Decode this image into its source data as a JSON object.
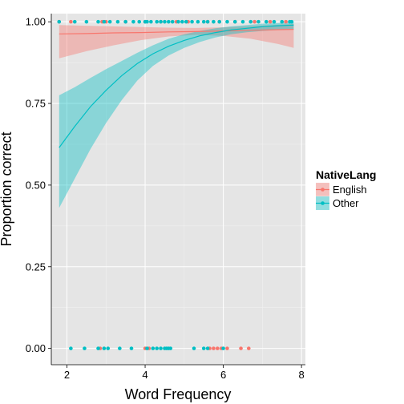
{
  "chart_data": {
    "type": "scatter",
    "title": "",
    "xlabel": "Word Frequency",
    "ylabel": "Proportion correct",
    "xlim": [
      1.6,
      8.1
    ],
    "ylim": [
      -0.05,
      1.025
    ],
    "x_ticks": [
      2,
      4,
      6,
      8
    ],
    "x_tick_labels": [
      "2",
      "4",
      "6",
      "8"
    ],
    "y_ticks": [
      0,
      0.25,
      0.5,
      0.75,
      1
    ],
    "y_tick_labels": [
      "0.00",
      "0.25",
      "0.50",
      "0.75",
      "1.00"
    ],
    "grid": true,
    "legend": {
      "title": "NativeLang",
      "position": "right"
    },
    "series": [
      {
        "name": "English",
        "color": "#F8766D",
        "points_y1": [
          1.8,
          2.1,
          2.9,
          3.0,
          3.5,
          4.0,
          4.4,
          4.8,
          5.1,
          5.6,
          5.9,
          6.3,
          6.8,
          7.2,
          7.6
        ],
        "points_y0": [
          2.85,
          4.0,
          4.1,
          5.65,
          5.75,
          5.85,
          5.95,
          6.1,
          6.45,
          6.65
        ],
        "fit_x": [
          1.8,
          2.5,
          3.2,
          3.9,
          4.6,
          5.3,
          6.0,
          6.7,
          7.4,
          7.8
        ],
        "fit_y": [
          0.963,
          0.964,
          0.966,
          0.967,
          0.969,
          0.97,
          0.972,
          0.974,
          0.976,
          0.977
        ],
        "ci_low": [
          0.888,
          0.91,
          0.928,
          0.944,
          0.955,
          0.96,
          0.957,
          0.948,
          0.932,
          0.92
        ],
        "ci_high": [
          0.99,
          0.988,
          0.986,
          0.984,
          0.982,
          0.981,
          0.983,
          0.987,
          0.991,
          0.993
        ]
      },
      {
        "name": "Other",
        "color": "#00BFC4",
        "points_y1": [
          1.8,
          2.2,
          2.5,
          2.8,
          2.95,
          3.1,
          3.3,
          3.5,
          3.7,
          3.85,
          4.0,
          4.05,
          4.15,
          4.3,
          4.4,
          4.5,
          4.6,
          4.7,
          4.85,
          4.95,
          5.05,
          5.2,
          5.35,
          5.5,
          5.6,
          5.75,
          5.9,
          6.1,
          6.3,
          6.5,
          6.7,
          6.9,
          7.1,
          7.3,
          7.5,
          7.7,
          7.75
        ],
        "points_y0": [
          2.1,
          2.45,
          2.8,
          2.95,
          3.05,
          3.35,
          3.65,
          4.05,
          4.2,
          4.3,
          4.4,
          4.5,
          4.55,
          4.6,
          4.65,
          5.25,
          5.5,
          5.6,
          6.0
        ],
        "fit_x": [
          1.8,
          2.2,
          2.6,
          3.0,
          3.4,
          3.8,
          4.2,
          4.6,
          5.0,
          5.4,
          5.8,
          6.2,
          6.6,
          7.0,
          7.4,
          7.8
        ],
        "fit_y": [
          0.615,
          0.68,
          0.74,
          0.79,
          0.835,
          0.872,
          0.902,
          0.925,
          0.943,
          0.957,
          0.967,
          0.975,
          0.98,
          0.985,
          0.988,
          0.99
        ],
        "ci_low": [
          0.43,
          0.52,
          0.61,
          0.69,
          0.76,
          0.82,
          0.865,
          0.897,
          0.92,
          0.938,
          0.952,
          0.962,
          0.968,
          0.972,
          0.975,
          0.977
        ],
        "ci_high": [
          0.775,
          0.8,
          0.828,
          0.855,
          0.88,
          0.905,
          0.928,
          0.948,
          0.962,
          0.972,
          0.98,
          0.986,
          0.99,
          0.994,
          0.996,
          0.998
        ]
      }
    ]
  }
}
